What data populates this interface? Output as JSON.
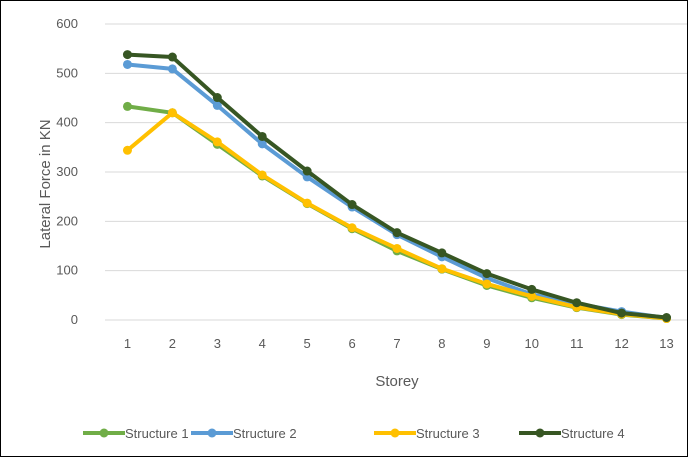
{
  "chart_data": {
    "type": "line",
    "title": "",
    "xlabel": "Storey",
    "ylabel": "Lateral Force in KN",
    "categories": [
      "1",
      "2",
      "3",
      "4",
      "5",
      "6",
      "7",
      "8",
      "9",
      "10",
      "11",
      "12",
      "13"
    ],
    "ylim": [
      0,
      600
    ],
    "yticks": [
      0,
      100,
      200,
      300,
      400,
      500,
      600
    ],
    "grid": true,
    "legend_position": "bottom",
    "series": [
      {
        "name": "Structure 1",
        "color": "#70AD47",
        "values": [
          433,
          420,
          356,
          292,
          236,
          185,
          140,
          103,
          70,
          45,
          25,
          11,
          3
        ]
      },
      {
        "name": "Structure 2",
        "color": "#5B9BD5",
        "values": [
          518,
          509,
          435,
          357,
          290,
          229,
          173,
          128,
          85,
          52,
          33,
          17,
          4
        ]
      },
      {
        "name": "Structure 3",
        "color": "#FFC000",
        "values": [
          344,
          420,
          361,
          294,
          237,
          187,
          145,
          104,
          73,
          48,
          26,
          12,
          3
        ]
      },
      {
        "name": "Structure 4",
        "color": "#375623",
        "values": [
          538,
          533,
          451,
          372,
          302,
          234,
          177,
          136,
          94,
          62,
          35,
          14,
          5
        ]
      }
    ]
  }
}
